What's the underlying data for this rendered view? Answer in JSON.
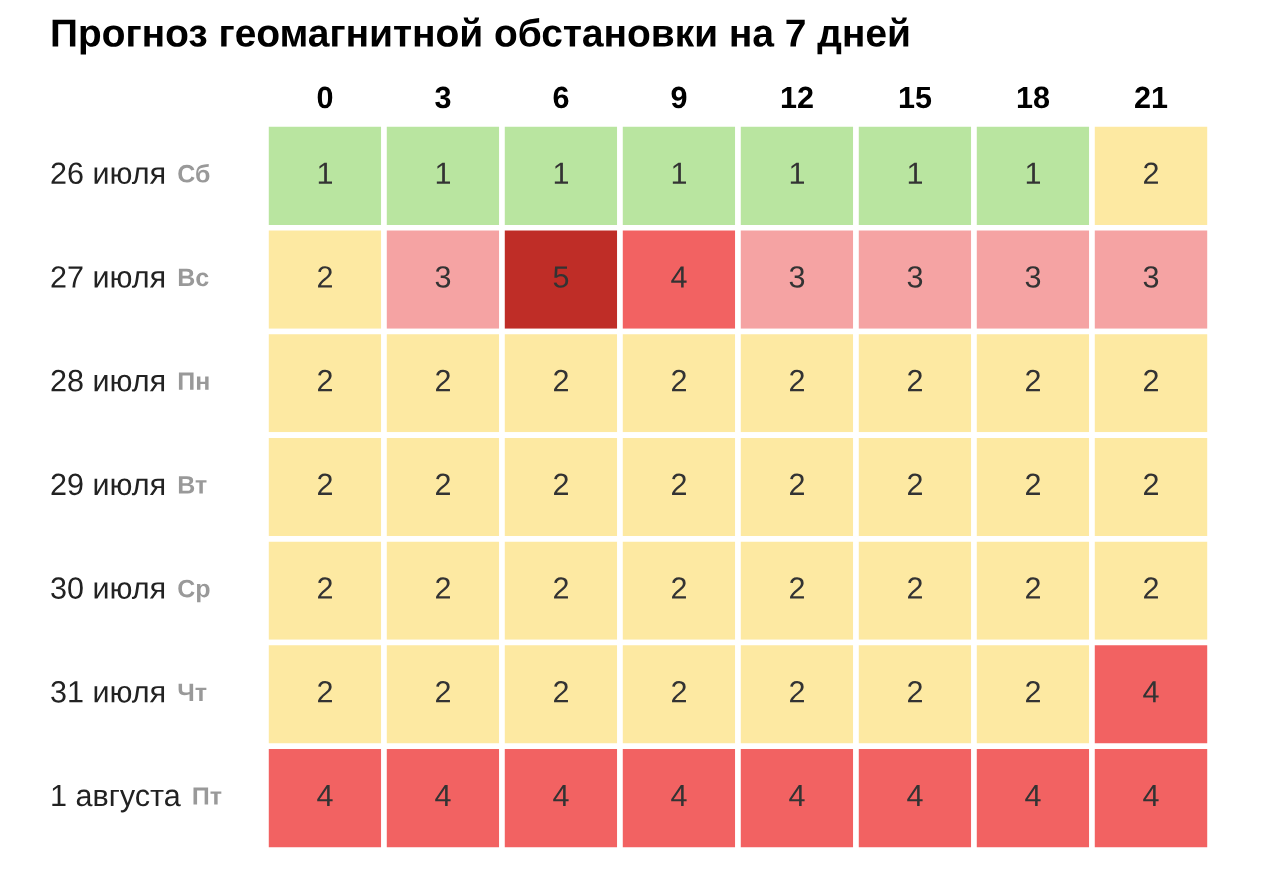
{
  "chart_data": {
    "type": "heatmap",
    "title": "Прогноз геомагнитной обстановки на 7 дней",
    "categories": [
      "0",
      "3",
      "6",
      "9",
      "12",
      "15",
      "18",
      "21"
    ],
    "y_categories": [
      "26 июля",
      "27 июля",
      "28 июля",
      "29 июля",
      "30 июля",
      "31 июля",
      "1 августа"
    ],
    "y2_categories": [
      "Сб",
      "Вс",
      "Пн",
      "Вт",
      "Ср",
      "Чт",
      "Пт"
    ],
    "cells": [
      [
        1,
        1,
        1,
        1,
        1,
        1,
        1,
        2
      ],
      [
        2,
        3,
        5,
        4,
        3,
        3,
        3,
        3
      ],
      [
        2,
        2,
        2,
        2,
        2,
        2,
        2,
        2
      ],
      [
        2,
        2,
        2,
        2,
        2,
        2,
        2,
        2
      ],
      [
        2,
        2,
        2,
        2,
        2,
        2,
        2,
        2
      ],
      [
        2,
        2,
        2,
        2,
        2,
        2,
        2,
        4
      ],
      [
        4,
        4,
        4,
        4,
        4,
        4,
        4,
        4
      ]
    ],
    "data_labels": true
  }
}
